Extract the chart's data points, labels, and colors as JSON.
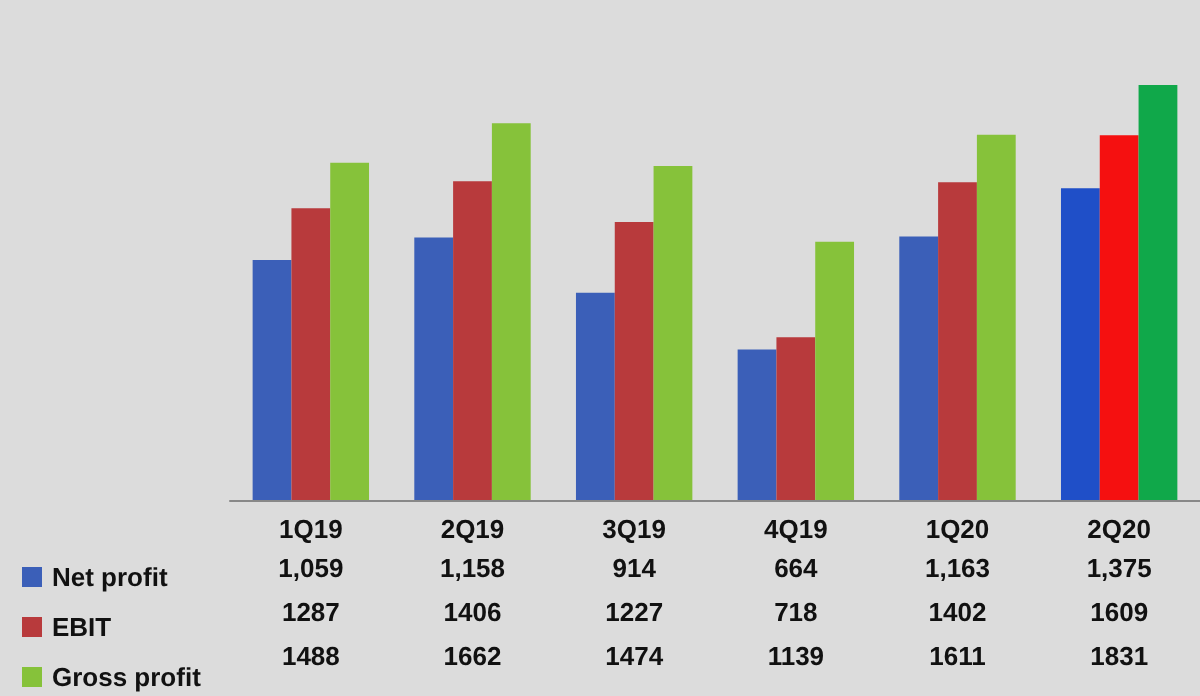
{
  "chart_data": {
    "type": "bar",
    "categories": [
      "1Q19",
      "2Q19",
      "3Q19",
      "4Q19",
      "1Q20",
      "2Q20"
    ],
    "series": [
      {
        "name": "Net profit",
        "color": "#3b5fb8",
        "colors": [
          "#3b5fb8",
          "#3b5fb8",
          "#3b5fb8",
          "#3b5fb8",
          "#3b5fb8",
          "#1f4fc8"
        ],
        "values": [
          1059,
          1158,
          914,
          664,
          1163,
          1375
        ],
        "value_labels": [
          "1,059",
          "1,158",
          "914",
          "664",
          "1,163",
          "1,375"
        ]
      },
      {
        "name": "EBIT",
        "color": "#b83a3c",
        "colors": [
          "#b83a3c",
          "#b83a3c",
          "#b83a3c",
          "#b83a3c",
          "#b83a3c",
          "#f51010"
        ],
        "values": [
          1287,
          1406,
          1227,
          718,
          1402,
          1609
        ],
        "value_labels": [
          "1287",
          "1406",
          "1227",
          "718",
          "1402",
          "1609"
        ]
      },
      {
        "name": "Gross profit",
        "color": "#86c23a",
        "colors": [
          "#86c23a",
          "#86c23a",
          "#86c23a",
          "#86c23a",
          "#86c23a",
          "#10a84a"
        ],
        "values": [
          1488,
          1662,
          1474,
          1139,
          1611,
          1831
        ],
        "value_labels": [
          "1488",
          "1662",
          "1474",
          "1139",
          "1611",
          "1831"
        ]
      }
    ],
    "data_labels": true,
    "legend": "bottom left"
  }
}
